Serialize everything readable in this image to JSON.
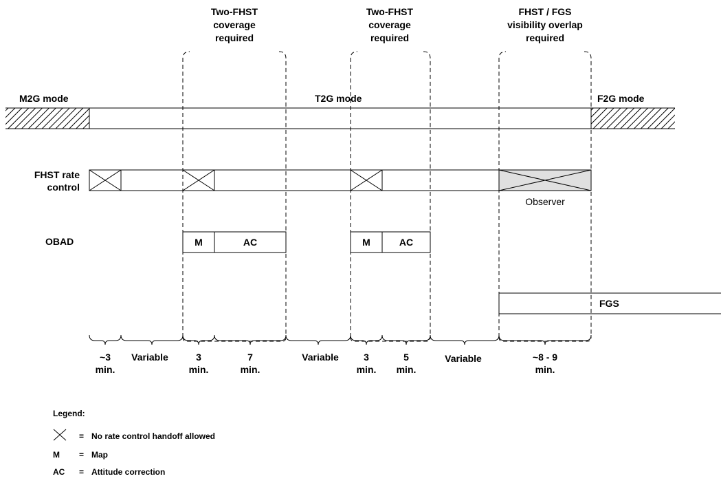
{
  "headers": {
    "coverage_1": [
      "Two-FHST",
      "coverage",
      "required"
    ],
    "coverage_2": [
      "Two-FHST",
      "coverage",
      "required"
    ],
    "overlap": [
      "FHST / FGS",
      "visibility overlap",
      "required"
    ]
  },
  "modes": {
    "m2g": "M2G mode",
    "t2g": "T2G mode",
    "f2g": "F2G mode"
  },
  "rows": {
    "fhst_rate_control": [
      "FHST rate",
      "control"
    ],
    "observer": "Observer",
    "obad": "OBAD",
    "fgs": "FGS"
  },
  "obad_boxes": {
    "map_1": "M",
    "ac_1": "AC",
    "map_2": "M",
    "ac_2": "AC"
  },
  "durations": [
    [
      "~3",
      "min."
    ],
    [
      "Variable"
    ],
    [
      "3",
      "min."
    ],
    [
      "7",
      "min."
    ],
    [
      "Variable"
    ],
    [
      "3",
      "min."
    ],
    [
      "5",
      "min."
    ],
    [
      "Variable"
    ],
    [
      "~8 - 9",
      "min."
    ]
  ],
  "legend": {
    "title": "Legend:",
    "items": [
      {
        "symbol": "",
        "eq": "=",
        "text": "No rate control handoff allowed"
      },
      {
        "symbol": "M",
        "eq": "=",
        "text": "Map"
      },
      {
        "symbol": "AC",
        "eq": "=",
        "text": "Attitude correction"
      }
    ]
  }
}
